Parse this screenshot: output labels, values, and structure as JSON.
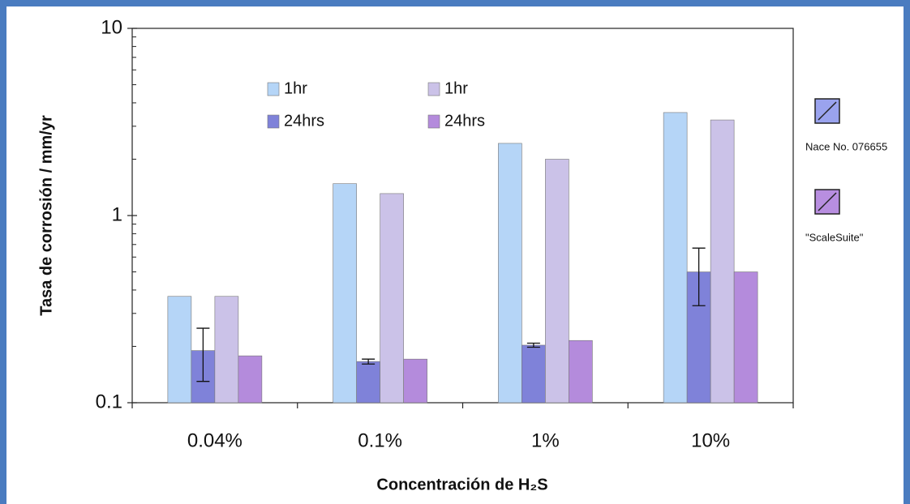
{
  "chart_data": {
    "type": "bar",
    "log_y": true,
    "x_label": "Concentración de H₂S",
    "y_label": "Tasa de corrosión / mm/yr",
    "categories": [
      "0.04%",
      "0.1%",
      "1%",
      "10%"
    ],
    "groups": [
      {
        "name": "Nace No. 076655",
        "color": "#9aa3ee"
      },
      {
        "name": "\"ScaleSuite\"",
        "color": "#b88ee0"
      }
    ],
    "series": [
      {
        "name": "1hr",
        "group": 0,
        "color": "#b5d5f7",
        "values": [
          0.37,
          1.48,
          2.43,
          3.55
        ]
      },
      {
        "name": "24hrs",
        "group": 0,
        "color": "#7f82d9",
        "values": [
          0.19,
          0.166,
          0.203,
          0.5
        ],
        "errors": [
          0.06,
          0.005,
          0.005,
          0.17
        ]
      },
      {
        "name": "1hr",
        "group": 1,
        "color": "#cbc2e8",
        "values": [
          0.37,
          1.31,
          2.0,
          3.24
        ]
      },
      {
        "name": "24hrs",
        "group": 1,
        "color": "#b48bdc",
        "values": [
          0.178,
          0.171,
          0.215,
          0.5
        ]
      }
    ],
    "ylim": [
      0.1,
      10
    ],
    "yticks": [
      0.1,
      1,
      10
    ],
    "yminor": [
      0.2,
      0.3,
      0.4,
      0.5,
      0.6,
      0.7,
      0.8,
      0.9,
      2,
      3,
      4,
      5,
      6,
      7,
      8,
      9
    ]
  }
}
